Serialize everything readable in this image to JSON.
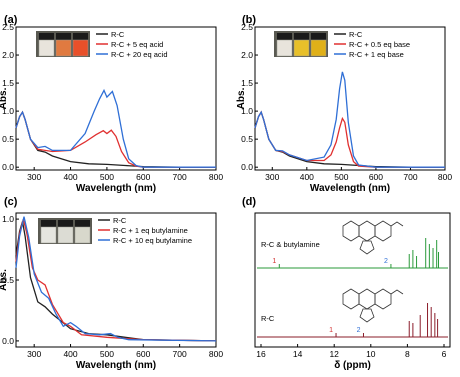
{
  "colors": {
    "black": "#222222",
    "red": "#e03030",
    "blue": "#2f6fd6",
    "green": "#2a9a3a",
    "maroon": "#8a1c2a",
    "accent": "#2f6fd6"
  },
  "chart_data": [
    {
      "type": "line",
      "panel_label": "(a)",
      "xlabel": "Wavelength (nm)",
      "ylabel": "Abs.",
      "xlim": [
        250,
        800
      ],
      "ylim": [
        -0.05,
        2.5
      ],
      "xticks": [
        300,
        400,
        500,
        600,
        700,
        800
      ],
      "yticks": [
        "0.0",
        "0.5",
        "1.0",
        "1.5",
        "2.0",
        "2.5"
      ],
      "legend_position": "top-right",
      "series": [
        {
          "name": "R-C",
          "color": "black",
          "points": [
            [
              250,
              0.7
            ],
            [
              260,
              0.9
            ],
            [
              268,
              0.98
            ],
            [
              275,
              0.85
            ],
            [
              290,
              0.5
            ],
            [
              310,
              0.3
            ],
            [
              330,
              0.27
            ],
            [
              350,
              0.2
            ],
            [
              400,
              0.1
            ],
            [
              450,
              0.06
            ],
            [
              500,
              0.05
            ],
            [
              550,
              0.03
            ],
            [
              600,
              0.01
            ],
            [
              700,
              0
            ],
            [
              800,
              0
            ]
          ]
        },
        {
          "name": "R-C + 5 eq acid",
          "color": "red",
          "points": [
            [
              250,
              0.7
            ],
            [
              260,
              0.9
            ],
            [
              268,
              0.98
            ],
            [
              275,
              0.85
            ],
            [
              290,
              0.5
            ],
            [
              310,
              0.32
            ],
            [
              330,
              0.3
            ],
            [
              350,
              0.28
            ],
            [
              400,
              0.3
            ],
            [
              440,
              0.45
            ],
            [
              470,
              0.58
            ],
            [
              490,
              0.65
            ],
            [
              500,
              0.6
            ],
            [
              512,
              0.66
            ],
            [
              525,
              0.55
            ],
            [
              540,
              0.28
            ],
            [
              560,
              0.08
            ],
            [
              580,
              0.02
            ],
            [
              600,
              0
            ],
            [
              800,
              0
            ]
          ]
        },
        {
          "name": "R-C + 20 eq acid",
          "color": "blue",
          "points": [
            [
              250,
              0.7
            ],
            [
              260,
              0.9
            ],
            [
              268,
              0.98
            ],
            [
              275,
              0.85
            ],
            [
              290,
              0.5
            ],
            [
              310,
              0.35
            ],
            [
              330,
              0.37
            ],
            [
              350,
              0.3
            ],
            [
              400,
              0.3
            ],
            [
              440,
              0.6
            ],
            [
              465,
              1.0
            ],
            [
              480,
              1.22
            ],
            [
              492,
              1.37
            ],
            [
              500,
              1.25
            ],
            [
              515,
              1.35
            ],
            [
              528,
              1.1
            ],
            [
              545,
              0.5
            ],
            [
              560,
              0.15
            ],
            [
              580,
              0.03
            ],
            [
              600,
              0
            ],
            [
              800,
              0
            ]
          ]
        }
      ]
    },
    {
      "type": "line",
      "panel_label": "(b)",
      "xlabel": "Wavelength (nm)",
      "ylabel": "Abs.",
      "xlim": [
        250,
        800
      ],
      "ylim": [
        -0.05,
        2.5
      ],
      "xticks": [
        300,
        400,
        500,
        600,
        700,
        800
      ],
      "yticks": [
        "0.0",
        "0.5",
        "1.0",
        "1.5",
        "2.0",
        "2.5"
      ],
      "legend_position": "top-right",
      "series": [
        {
          "name": "R-C",
          "color": "black",
          "points": [
            [
              250,
              0.7
            ],
            [
              260,
              0.9
            ],
            [
              268,
              0.98
            ],
            [
              275,
              0.85
            ],
            [
              290,
              0.5
            ],
            [
              310,
              0.3
            ],
            [
              330,
              0.27
            ],
            [
              350,
              0.2
            ],
            [
              400,
              0.1
            ],
            [
              450,
              0.06
            ],
            [
              500,
              0.05
            ],
            [
              550,
              0.03
            ],
            [
              600,
              0.01
            ],
            [
              700,
              0
            ],
            [
              800,
              0
            ]
          ]
        },
        {
          "name": "R-C  + 0.5 eq base",
          "color": "red",
          "points": [
            [
              250,
              0.7
            ],
            [
              260,
              0.9
            ],
            [
              268,
              0.98
            ],
            [
              275,
              0.85
            ],
            [
              290,
              0.5
            ],
            [
              310,
              0.3
            ],
            [
              330,
              0.28
            ],
            [
              350,
              0.22
            ],
            [
              400,
              0.12
            ],
            [
              450,
              0.12
            ],
            [
              470,
              0.22
            ],
            [
              485,
              0.45
            ],
            [
              495,
              0.7
            ],
            [
              503,
              0.87
            ],
            [
              510,
              0.8
            ],
            [
              520,
              0.4
            ],
            [
              535,
              0.1
            ],
            [
              550,
              0.02
            ],
            [
              600,
              0
            ],
            [
              800,
              0
            ]
          ]
        },
        {
          "name": "R-C  + 1 eq base",
          "color": "blue",
          "points": [
            [
              250,
              0.7
            ],
            [
              260,
              0.9
            ],
            [
              268,
              0.98
            ],
            [
              275,
              0.85
            ],
            [
              290,
              0.5
            ],
            [
              310,
              0.3
            ],
            [
              330,
              0.29
            ],
            [
              350,
              0.22
            ],
            [
              400,
              0.12
            ],
            [
              450,
              0.18
            ],
            [
              470,
              0.4
            ],
            [
              485,
              0.85
            ],
            [
              495,
              1.4
            ],
            [
              503,
              1.7
            ],
            [
              510,
              1.55
            ],
            [
              520,
              0.8
            ],
            [
              535,
              0.2
            ],
            [
              550,
              0.04
            ],
            [
              600,
              0
            ],
            [
              800,
              0
            ]
          ]
        }
      ]
    },
    {
      "type": "line",
      "panel_label": "(c)",
      "xlabel": "Wavelength (nm)",
      "ylabel": "Abs.",
      "xlim": [
        250,
        800
      ],
      "ylim": [
        -0.05,
        1.05
      ],
      "xticks": [
        300,
        400,
        500,
        600,
        700,
        800
      ],
      "yticks": [
        "0.0",
        "0.5",
        "1.0"
      ],
      "legend_position": "top-right",
      "series": [
        {
          "name": "R-C",
          "color": "black",
          "points": [
            [
              250,
              0.7
            ],
            [
              260,
              0.9
            ],
            [
              268,
              0.98
            ],
            [
              275,
              0.86
            ],
            [
              290,
              0.52
            ],
            [
              310,
              0.32
            ],
            [
              330,
              0.28
            ],
            [
              350,
              0.22
            ],
            [
              400,
              0.1
            ],
            [
              450,
              0.06
            ],
            [
              500,
              0.05
            ],
            [
              550,
              0.03
            ],
            [
              600,
              0.01
            ],
            [
              800,
              0
            ]
          ]
        },
        {
          "name": "R-C + 1 eq butylamine",
          "color": "red",
          "points": [
            [
              250,
              0.65
            ],
            [
              260,
              0.88
            ],
            [
              270,
              1.0
            ],
            [
              280,
              0.88
            ],
            [
              295,
              0.6
            ],
            [
              310,
              0.5
            ],
            [
              330,
              0.46
            ],
            [
              350,
              0.3
            ],
            [
              380,
              0.15
            ],
            [
              400,
              0.12
            ],
            [
              430,
              0.05
            ],
            [
              500,
              0.03
            ],
            [
              600,
              0.01
            ],
            [
              800,
              0
            ]
          ]
        },
        {
          "name": "R-C + 10 eq butylamine",
          "color": "blue",
          "points": [
            [
              250,
              0.6
            ],
            [
              260,
              0.86
            ],
            [
              272,
              1.02
            ],
            [
              285,
              0.85
            ],
            [
              300,
              0.55
            ],
            [
              320,
              0.4
            ],
            [
              340,
              0.35
            ],
            [
              360,
              0.22
            ],
            [
              380,
              0.12
            ],
            [
              400,
              0.15
            ],
            [
              415,
              0.12
            ],
            [
              440,
              0.06
            ],
            [
              480,
              0.05
            ],
            [
              510,
              0.06
            ],
            [
              530,
              0.03
            ],
            [
              560,
              0.01
            ],
            [
              800,
              0
            ]
          ]
        }
      ]
    },
    {
      "type": "nmr",
      "panel_label": "(d)",
      "xlabel": "δ (ppm)",
      "xlim": [
        16,
        6
      ],
      "xticks": [
        16,
        14,
        12,
        10,
        8,
        6
      ],
      "spectra": [
        {
          "name": "R-C & butylamine",
          "color": "green",
          "peak_labels": [
            {
              "text": "1",
              "ppm": 15.0
            },
            {
              "text": "2",
              "ppm": 8.9
            }
          ]
        },
        {
          "name": "R-C",
          "color": "maroon",
          "peak_labels": [
            {
              "text": "1",
              "ppm": 11.9
            },
            {
              "text": "2",
              "ppm": 10.4
            }
          ]
        }
      ]
    }
  ]
}
